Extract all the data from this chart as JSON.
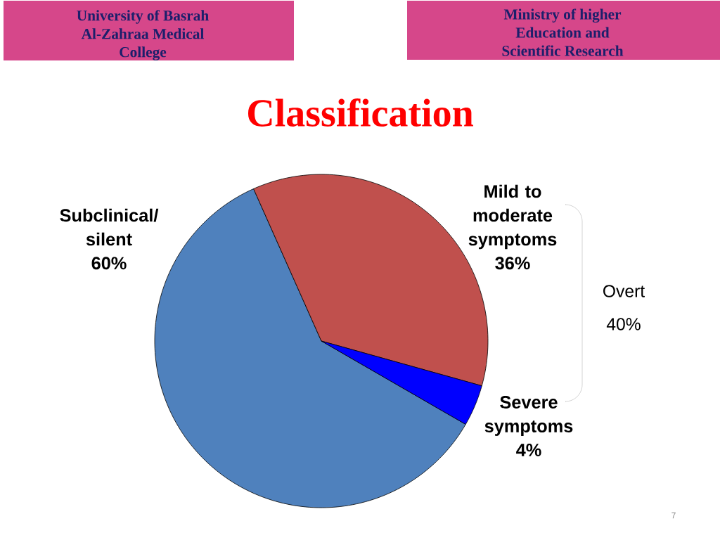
{
  "chart_data": {
    "type": "pie",
    "title": "Classification",
    "categories": [
      "Subclinical/ silent",
      "Mild to moderate symptoms",
      "Severe symptoms"
    ],
    "values": [
      60,
      36,
      4
    ],
    "colors": [
      "#4f81bd",
      "#c0504d",
      "#0000ff"
    ],
    "value_labels": [
      "60%",
      "36%",
      "4%"
    ],
    "annotations": [
      "University of Basrah Al-Zahraa Medical College",
      "Ministry of higher Education and Scientific Research",
      "Overt",
      "40%",
      "7"
    ]
  }
}
